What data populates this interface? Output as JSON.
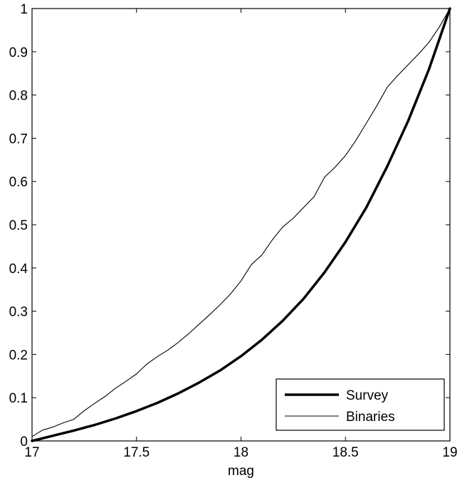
{
  "chart_data": {
    "type": "line",
    "title": "",
    "xlabel": "mag",
    "ylabel": "",
    "xlim": [
      17,
      19
    ],
    "ylim": [
      0,
      1
    ],
    "x_ticks": [
      "17",
      "17.5",
      "18",
      "18.5",
      "19"
    ],
    "y_ticks": [
      "0",
      "0.1",
      "0.2",
      "0.3",
      "0.4",
      "0.5",
      "0.6",
      "0.7",
      "0.8",
      "0.9",
      "1"
    ],
    "grid": false,
    "legend_position": "bottom-right",
    "series": [
      {
        "name": "Survey",
        "color": "#000000",
        "x": [
          17.0,
          17.1,
          17.2,
          17.3,
          17.4,
          17.5,
          17.6,
          17.7,
          17.8,
          17.9,
          18.0,
          18.1,
          18.2,
          18.3,
          18.4,
          18.5,
          18.6,
          18.7,
          18.8,
          18.9,
          19.0
        ],
        "y": [
          0.0,
          0.012,
          0.024,
          0.037,
          0.052,
          0.069,
          0.088,
          0.11,
          0.135,
          0.163,
          0.196,
          0.234,
          0.278,
          0.329,
          0.39,
          0.46,
          0.54,
          0.635,
          0.74,
          0.86,
          1.0
        ]
      },
      {
        "name": "Binaries",
        "color": "#000000",
        "x": [
          17.0,
          17.05,
          17.1,
          17.15,
          17.2,
          17.25,
          17.3,
          17.35,
          17.4,
          17.45,
          17.5,
          17.55,
          17.6,
          17.65,
          17.7,
          17.75,
          17.8,
          17.85,
          17.9,
          17.95,
          18.0,
          18.05,
          18.1,
          18.15,
          18.2,
          18.25,
          18.3,
          18.35,
          18.4,
          18.45,
          18.5,
          18.55,
          18.6,
          18.65,
          18.7,
          18.75,
          18.8,
          18.85,
          18.9,
          18.95,
          19.0
        ],
        "y": [
          0.01,
          0.025,
          0.032,
          0.042,
          0.05,
          0.07,
          0.087,
          0.103,
          0.122,
          0.138,
          0.155,
          0.178,
          0.195,
          0.21,
          0.228,
          0.248,
          0.27,
          0.292,
          0.315,
          0.34,
          0.37,
          0.408,
          0.43,
          0.465,
          0.495,
          0.515,
          0.54,
          0.565,
          0.61,
          0.633,
          0.66,
          0.695,
          0.735,
          0.775,
          0.818,
          0.845,
          0.87,
          0.895,
          0.922,
          0.958,
          1.0
        ]
      }
    ]
  }
}
